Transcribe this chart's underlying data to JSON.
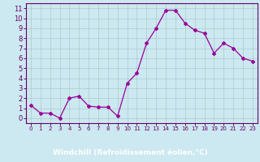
{
  "x": [
    0,
    1,
    2,
    3,
    4,
    5,
    6,
    7,
    8,
    9,
    10,
    11,
    12,
    13,
    14,
    15,
    16,
    17,
    18,
    19,
    20,
    21,
    22,
    23
  ],
  "y": [
    1.3,
    0.5,
    0.5,
    0.0,
    2.0,
    2.2,
    1.2,
    1.1,
    1.1,
    0.2,
    3.5,
    4.5,
    7.5,
    9.0,
    10.8,
    10.8,
    9.5,
    8.8,
    8.5,
    6.5,
    7.5,
    7.0,
    6.0,
    5.7
  ],
  "line_color": "#990099",
  "marker": "D",
  "markersize": 2,
  "linewidth": 0.9,
  "xlabel": "Windchill (Refroidissement éolien,°C)",
  "xlim": [
    -0.5,
    23.5
  ],
  "ylim": [
    -0.5,
    11.5
  ],
  "yticks": [
    0,
    1,
    2,
    3,
    4,
    5,
    6,
    7,
    8,
    9,
    10,
    11
  ],
  "xticks": [
    0,
    1,
    2,
    3,
    4,
    5,
    6,
    7,
    8,
    9,
    10,
    11,
    12,
    13,
    14,
    15,
    16,
    17,
    18,
    19,
    20,
    21,
    22,
    23
  ],
  "bg_color": "#cce8f0",
  "grid_color": "#aacccc",
  "line_axis_color": "#660066",
  "tick_color": "#660066",
  "bottom_bar_color": "#660066",
  "xlabel_text_color": "#ffffff",
  "xlabel_fontsize": 6.5,
  "ytick_fontsize": 6,
  "xtick_fontsize": 5
}
